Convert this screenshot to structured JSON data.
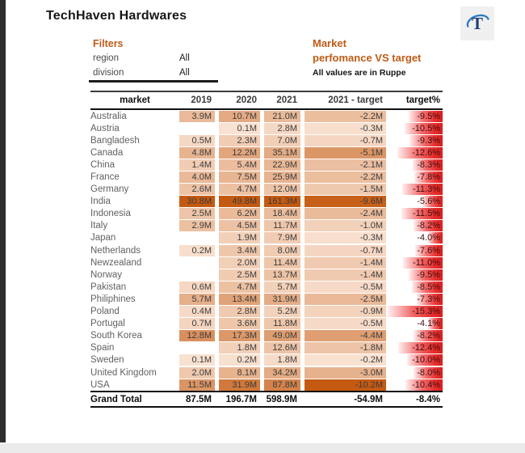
{
  "header": {
    "title": "TechHaven Hardwares",
    "logo_letter": "T"
  },
  "filters": {
    "heading": "Filters",
    "rows": [
      {
        "label": "region",
        "value": "All"
      },
      {
        "label": "division",
        "value": "All"
      }
    ]
  },
  "report_note": {
    "line1": "Market",
    "line2": "perfomance VS target",
    "line3": "All values are in Ruppe"
  },
  "colors": {
    "accent_orange": "#BF5B16",
    "heat_low": "#FBE7D9",
    "heat_high": "#C45A11",
    "bar_red": "#E02525",
    "logo_navy": "#1C3F77",
    "logo_blue": "#2F7BC0"
  },
  "chart_data": {
    "type": "table",
    "title": "Market perfomance VS target",
    "units_note": "All values are in Ruppe",
    "columns": [
      "market",
      "2019",
      "2020",
      "2021",
      "2021 - target",
      "target%"
    ],
    "rows": [
      [
        "Australia",
        "3.9M",
        "10.7M",
        "21.0M",
        "-2.2M",
        "-9.5%"
      ],
      [
        "Austria",
        "",
        "0.1M",
        "2.8M",
        "-0.3M",
        "-10.5%"
      ],
      [
        "Bangladesh",
        "0.5M",
        "2.3M",
        "7.0M",
        "-0.7M",
        "-9.3%"
      ],
      [
        "Canada",
        "4.8M",
        "12.2M",
        "35.1M",
        "-5.1M",
        "-12.6%"
      ],
      [
        "China",
        "1.4M",
        "5.4M",
        "22.9M",
        "-2.1M",
        "-8.3%"
      ],
      [
        "France",
        "4.0M",
        "7.5M",
        "25.9M",
        "-2.2M",
        "-7.8%"
      ],
      [
        "Germany",
        "2.6M",
        "4.7M",
        "12.0M",
        "-1.5M",
        "-11.3%"
      ],
      [
        "India",
        "30.8M",
        "49.8M",
        "161.3M",
        "-9.6M",
        "-5.6%"
      ],
      [
        "Indonesia",
        "2.5M",
        "6.2M",
        "18.4M",
        "-2.4M",
        "-11.5%"
      ],
      [
        "Italy",
        "2.9M",
        "4.5M",
        "11.7M",
        "-1.0M",
        "-8.2%"
      ],
      [
        "Japan",
        "",
        "1.9M",
        "7.9M",
        "-0.3M",
        "-4.0%"
      ],
      [
        "Netherlands",
        "0.2M",
        "3.4M",
        "8.0M",
        "-0.7M",
        "-7.6%"
      ],
      [
        "Newzealand",
        "",
        "2.0M",
        "11.4M",
        "-1.4M",
        "-11.0%"
      ],
      [
        "Norway",
        "",
        "2.5M",
        "13.7M",
        "-1.4M",
        "-9.5%"
      ],
      [
        "Pakistan",
        "0.6M",
        "4.7M",
        "5.7M",
        "-0.5M",
        "-8.5%"
      ],
      [
        "Philiphines",
        "5.7M",
        "13.4M",
        "31.9M",
        "-2.5M",
        "-7.3%"
      ],
      [
        "Poland",
        "0.4M",
        "2.8M",
        "5.2M",
        "-0.9M",
        "-15.3%"
      ],
      [
        "Portugal",
        "0.7M",
        "3.6M",
        "11.8M",
        "-0.5M",
        "-4.1%"
      ],
      [
        "South Korea",
        "12.8M",
        "17.3M",
        "49.0M",
        "-4.4M",
        "-8.2%"
      ],
      [
        "Spain",
        "",
        "1.8M",
        "12.6M",
        "-1.8M",
        "-12.4%"
      ],
      [
        "Sweden",
        "0.1M",
        "0.2M",
        "1.8M",
        "-0.2M",
        "-10.0%"
      ],
      [
        "United Kingdom",
        "2.0M",
        "8.1M",
        "34.2M",
        "-3.0M",
        "-8.0%"
      ],
      [
        "USA",
        "11.5M",
        "31.9M",
        "87.8M",
        "-10.2M",
        "-10.4%"
      ]
    ],
    "grand_total": [
      "Grand Total",
      "87.5M",
      "196.7M",
      "598.9M",
      "-54.9M",
      "-8.4%"
    ]
  }
}
